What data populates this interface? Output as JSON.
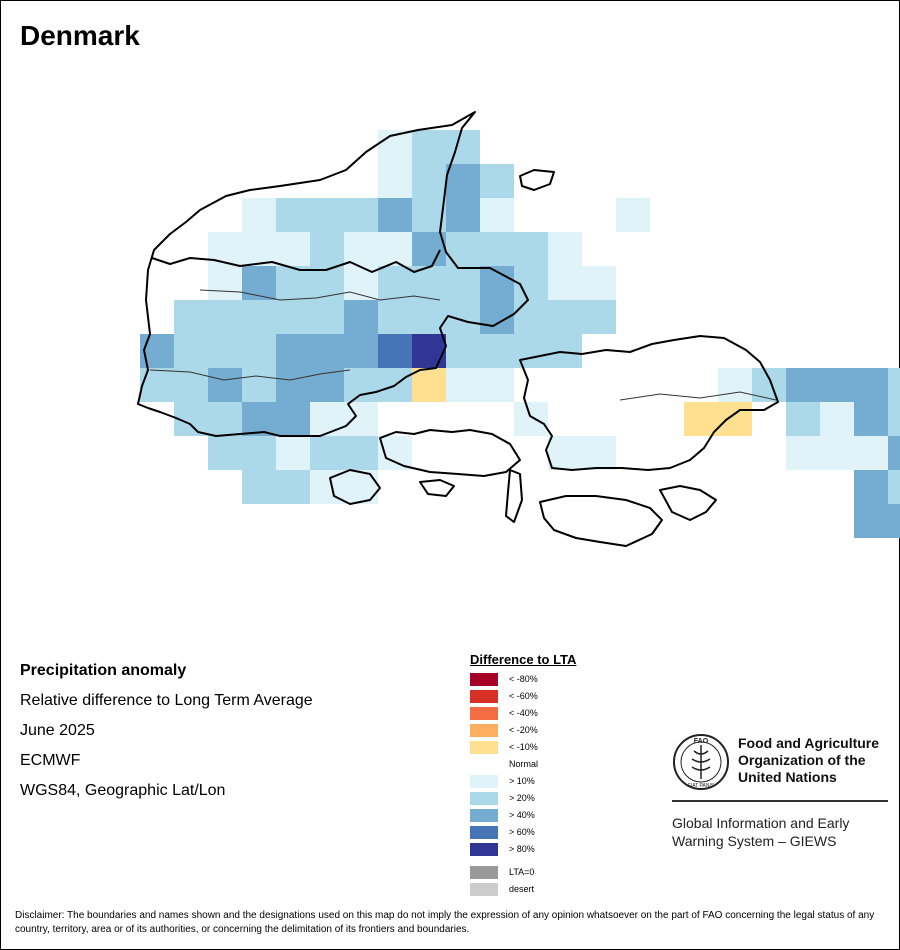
{
  "map": {
    "title": "Denmark",
    "legend_title": "Difference to LTA",
    "legend": [
      {
        "label": "< -80%",
        "color": "#a50026"
      },
      {
        "label": "< -60%",
        "color": "#d73027"
      },
      {
        "label": "< -40%",
        "color": "#f46d43"
      },
      {
        "label": "< -20%",
        "color": "#fdae61"
      },
      {
        "label": "< -10%",
        "color": "#fee090"
      },
      {
        "label": "Normal",
        "color": "#ffffff"
      },
      {
        "label": "> 10%",
        "color": "#e0f3f8"
      },
      {
        "label": "> 20%",
        "color": "#abd9e9"
      },
      {
        "label": "> 40%",
        "color": "#74add1"
      },
      {
        "label": "> 60%",
        "color": "#4575b4"
      },
      {
        "label": "> 80%",
        "color": "#313695"
      }
    ],
    "legend_extra": [
      {
        "label": "LTA=0",
        "color": "#999999"
      },
      {
        "label": "desert",
        "color": "#cccccc"
      }
    ]
  },
  "info": {
    "heading": "Precipitation anomaly",
    "line1": "Relative difference to Long Term Average",
    "line2": "June 2025",
    "line3": "ECMWF",
    "line4": "WGS84, Geographic Lat/Lon"
  },
  "fao": {
    "logo_text_top": "FAO",
    "logo_text_bottom": "FIAT PANIS",
    "name_line1": "Food and Agriculture",
    "name_line2": "Organization of the",
    "name_line3": "United Nations",
    "giews_line1": "Global Information and Early",
    "giews_line2": "Warning System – GIEWS"
  },
  "disclaimer": "Disclaimer: The boundaries and names shown and the designations used on this map do not imply the expression of any opinion whatsoever on the part of FAO concerning the legal status of any country, territory, area or of its authorities, or concerning the delimitation of its frontiers and boundaries."
}
